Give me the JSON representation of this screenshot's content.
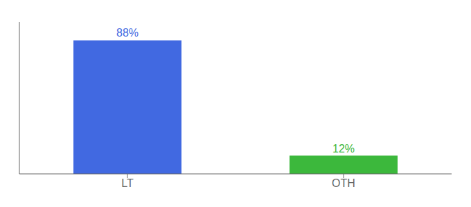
{
  "chart_data": {
    "type": "bar",
    "categories": [
      "LT",
      "OTH"
    ],
    "values": [
      88,
      12
    ],
    "colors": [
      "#4169e1",
      "#3cb83c"
    ],
    "value_labels": [
      "88%",
      "12%"
    ],
    "data_labels": true,
    "ylim": [
      0,
      100
    ],
    "grid": false,
    "tick_labels": "x"
  }
}
